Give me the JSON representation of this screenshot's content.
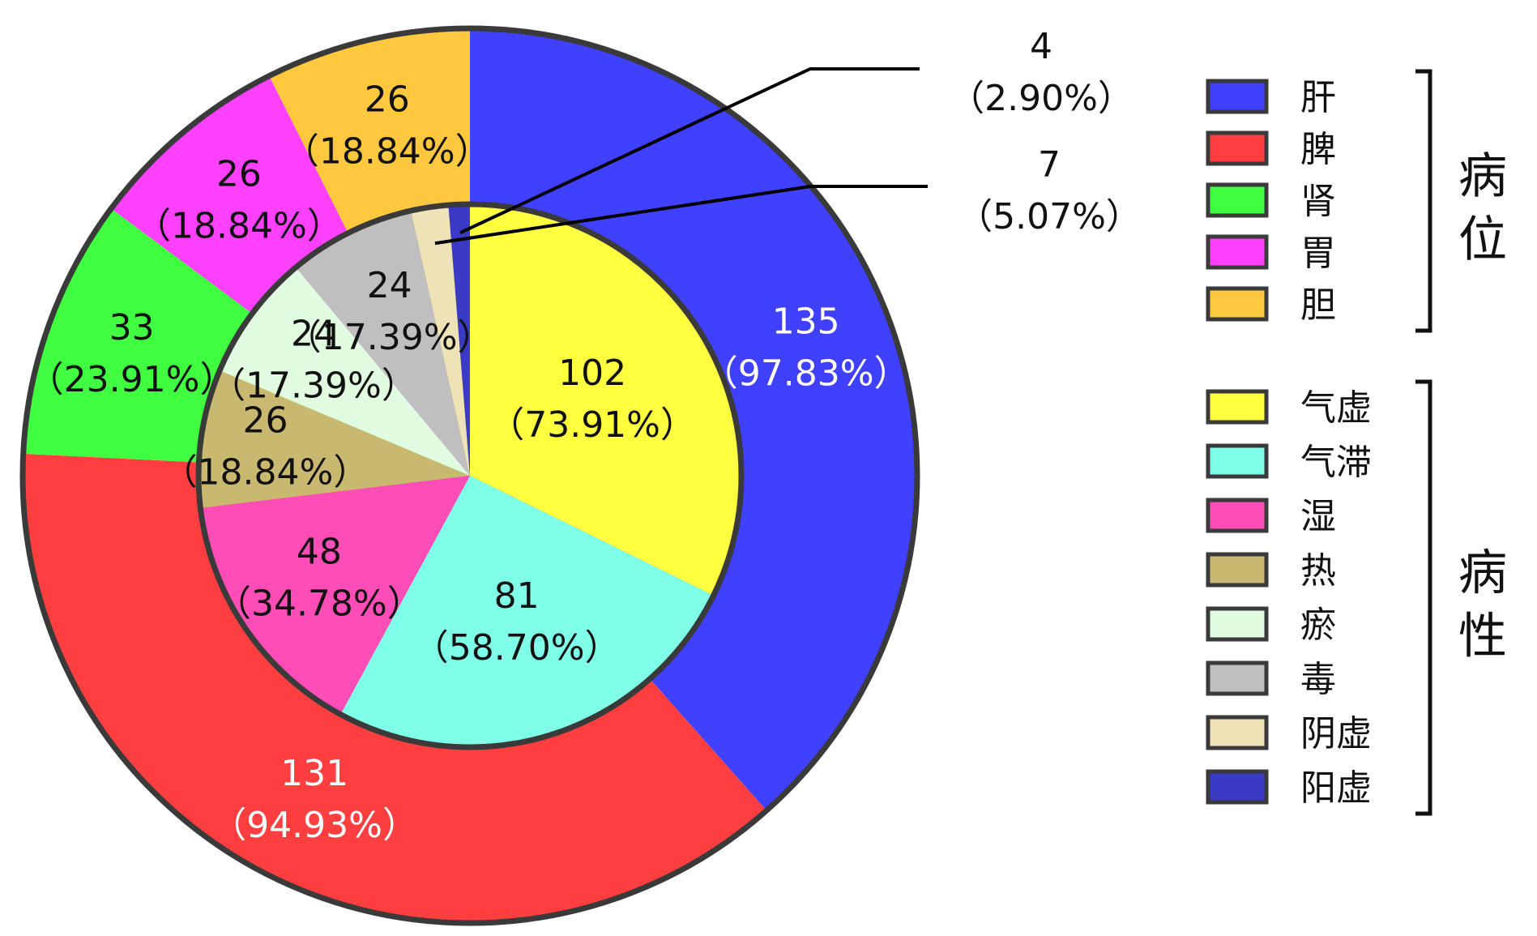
{
  "chart_data": {
    "type": "pie",
    "variant": "nested-donut",
    "title": "",
    "outer_ring": {
      "group": "病位",
      "slices": [
        {
          "name": "肝",
          "value": 135,
          "percent": "97.83%",
          "color": "#4040ff",
          "label_color": "#ffffff"
        },
        {
          "name": "脾",
          "value": 131,
          "percent": "94.93%",
          "color": "#ff3f3f",
          "label_color": "#ffffff"
        },
        {
          "name": "肾",
          "value": 33,
          "percent": "23.91%",
          "color": "#40ff40",
          "label_color": "#111111"
        },
        {
          "name": "胃",
          "value": 26,
          "percent": "18.84%",
          "color": "#ff40ff",
          "label_color": "#111111"
        },
        {
          "name": "胆",
          "value": 26,
          "percent": "18.84%",
          "color": "#ffc83f",
          "label_color": "#111111"
        }
      ]
    },
    "inner_pie": {
      "group": "病性",
      "slices": [
        {
          "name": "气虚",
          "value": 102,
          "percent": "73.91%",
          "color": "#ffff40",
          "label_color": "#111111"
        },
        {
          "name": "气滞",
          "value": 81,
          "percent": "58.70%",
          "color": "#80ffe8",
          "label_color": "#111111"
        },
        {
          "name": "湿",
          "value": 48,
          "percent": "34.78%",
          "color": "#ff4db8",
          "label_color": "#111111"
        },
        {
          "name": "热",
          "value": 26,
          "percent": "18.84%",
          "color": "#c9b86f",
          "label_color": "#111111"
        },
        {
          "name": "瘀",
          "value": 24,
          "percent": "17.39%",
          "color": "#e0fbe0",
          "label_color": "#111111"
        },
        {
          "name": "毒",
          "value": 24,
          "percent": "17.39%",
          "color": "#bfbfbf",
          "label_color": "#111111"
        },
        {
          "name": "阴虚",
          "value": 7,
          "percent": "5.07%",
          "color": "#eee3b6",
          "label_color": "#111111"
        },
        {
          "name": "阳虚",
          "value": 4,
          "percent": "2.90%",
          "color": "#3a3ac4",
          "label_color": "#111111"
        }
      ]
    },
    "legend": {
      "placement": "right",
      "groups": [
        {
          "title": "病位",
          "items": [
            "肝",
            "脾",
            "肾",
            "胃",
            "胆"
          ]
        },
        {
          "title": "病性",
          "items": [
            "气虚",
            "气滞",
            "湿",
            "热",
            "瘀",
            "毒",
            "阴虚",
            "阳虚"
          ]
        }
      ]
    }
  }
}
